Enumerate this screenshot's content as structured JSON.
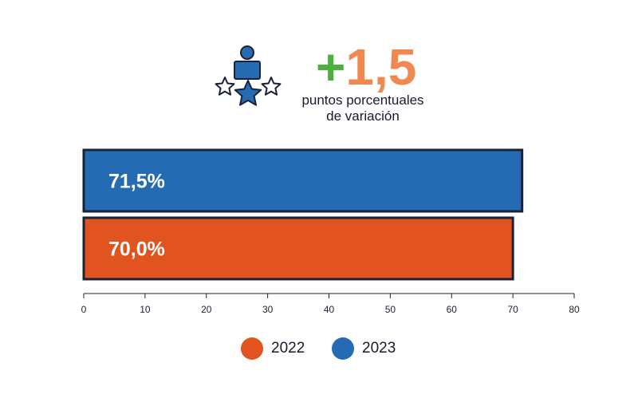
{
  "header": {
    "plus_sign": "+",
    "value": "1,5",
    "subtitle_line1": "puntos porcentuales",
    "subtitle_line2": "de variación"
  },
  "colors": {
    "2022": "#e2541f",
    "2023": "#256bb4",
    "border": "#1a2238",
    "plus": "#4caf3e",
    "number": "#f0894f"
  },
  "chart_data": {
    "type": "bar",
    "orientation": "horizontal",
    "categories": [
      "2023",
      "2022"
    ],
    "values": [
      71.5,
      70.0
    ],
    "labels": [
      "71,5%",
      "70,0%"
    ],
    "xlim": [
      0,
      80
    ],
    "xticks": [
      0,
      10,
      20,
      30,
      40,
      50,
      60,
      70,
      80
    ],
    "legend": [
      "2022",
      "2023"
    ],
    "legend_position": "bottom"
  },
  "icons": [
    "person-with-stars-icon"
  ]
}
